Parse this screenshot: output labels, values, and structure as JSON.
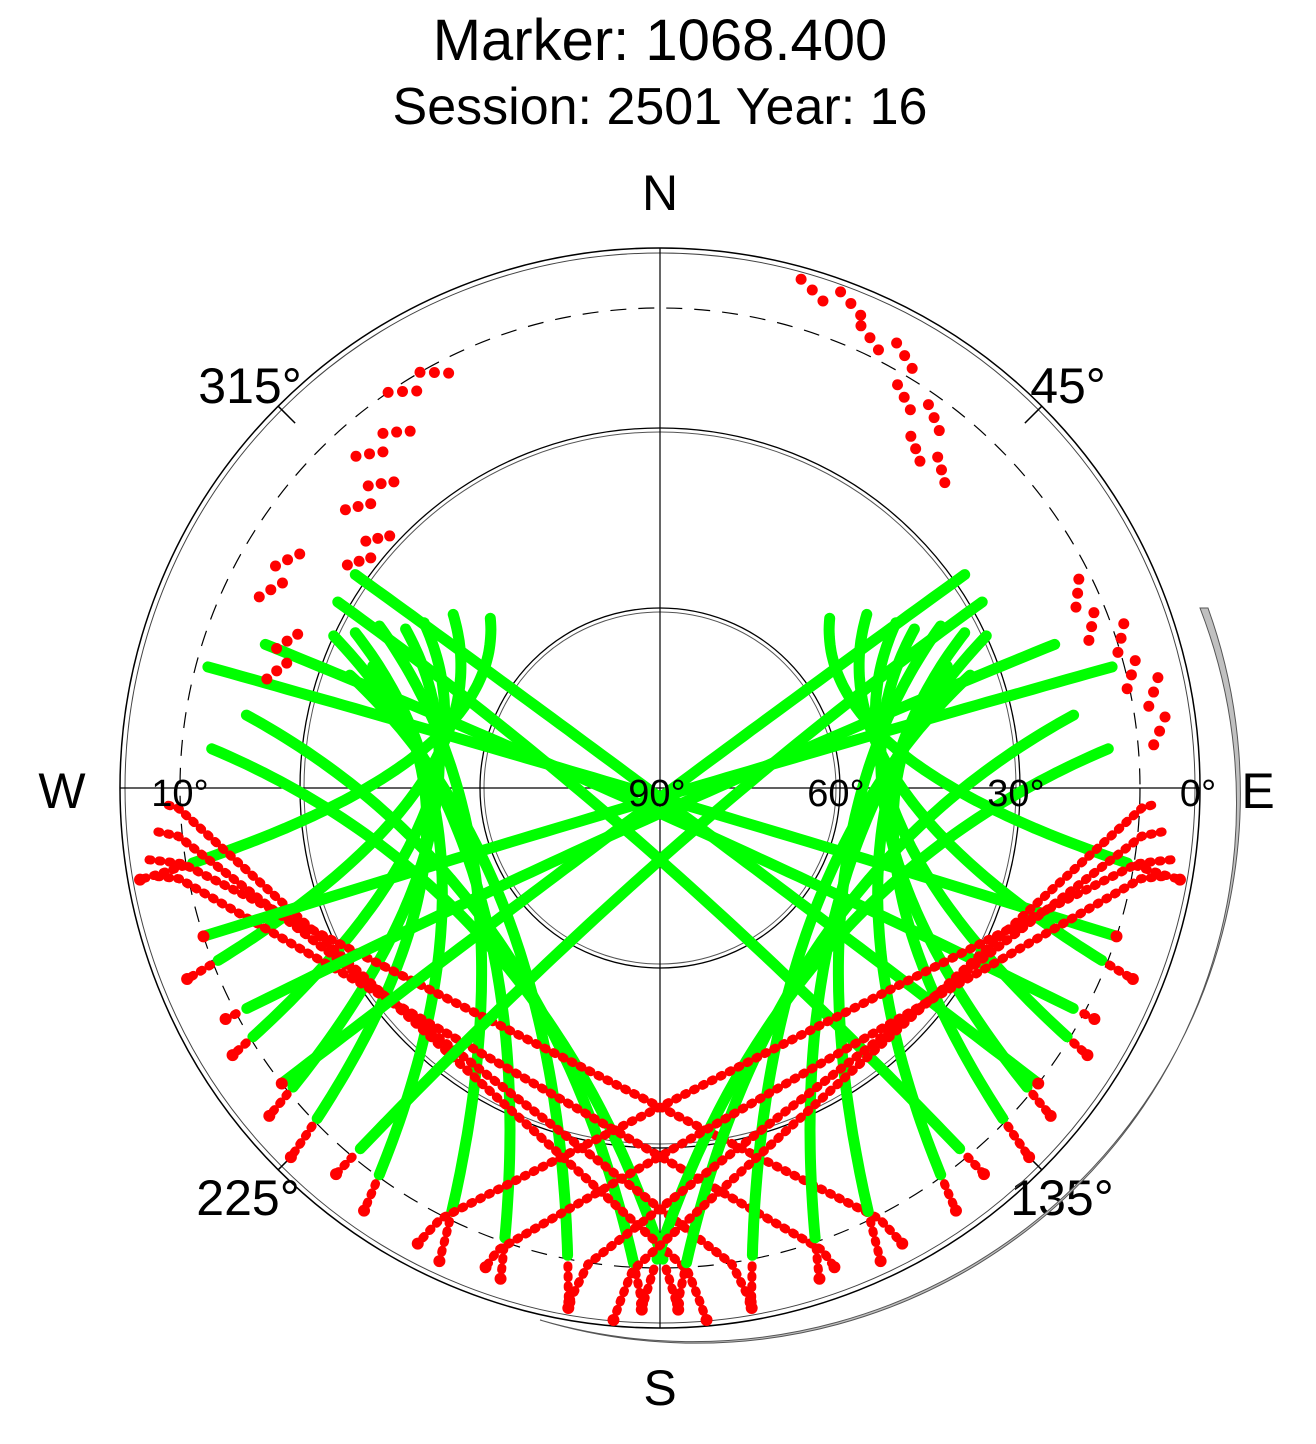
{
  "chart_data": {
    "type": "scatter",
    "projection": "polar-skyplot",
    "title": "Marker: 1068.400",
    "subtitle": "Session: 2501 Year: 16",
    "compass": {
      "north": "N",
      "south": "S",
      "east": "E",
      "west": "W"
    },
    "azimuth_labels": [
      "45°",
      "135°",
      "225°",
      "315°"
    ],
    "elevation_labels": [
      "0°",
      "10°",
      "30°",
      "60°",
      "90°"
    ],
    "elevation_mask_deg": 10,
    "elevation_rings_deg": [
      30,
      60
    ],
    "series": [],
    "colors": {
      "above_mask": "#00ff00",
      "below_mask": "#ff0000",
      "horizon_shade": "#c0c0c0",
      "axes": "#000000"
    },
    "tracks": [
      {
        "start": [
          293,
          38
        ],
        "end": [
          225,
          3
        ]
      },
      {
        "start": [
          302,
          40
        ],
        "end": [
          230,
          5
        ]
      },
      {
        "start": [
          305,
          42
        ],
        "end": [
          238,
          6
        ]
      },
      {
        "start": [
          297,
          33
        ],
        "end": [
          215,
          4
        ]
      },
      {
        "start": [
          310,
          45
        ],
        "end": [
          248,
          5
        ]
      },
      {
        "start": [
          300,
          36
        ],
        "end": [
          205,
          3
        ]
      },
      {
        "start": [
          295,
          30
        ],
        "end": [
          198,
          4
        ]
      },
      {
        "start": [
          290,
          35
        ],
        "end": [
          190,
          2
        ]
      },
      {
        "start": [
          315,
          50
        ],
        "end": [
          260,
          2
        ]
      },
      {
        "start": [
          280,
          20
        ],
        "end": [
          182,
          4
        ]
      },
      {
        "start": [
          275,
          15
        ],
        "end": [
          178,
          3
        ]
      },
      {
        "start": [
          268,
          8
        ],
        "end": [
          175,
          1
        ]
      },
      {
        "start": [
          265,
          6
        ],
        "end": [
          170,
          3
        ]
      },
      {
        "start": [
          260,
          5
        ],
        "end": [
          160,
          5
        ]
      },
      {
        "start": [
          262,
          4
        ],
        "end": [
          152,
          4
        ]
      },
      {
        "start": [
          300,
          28
        ],
        "end": [
          140,
          6
        ]
      },
      {
        "start": [
          305,
          28
        ],
        "end": [
          128,
          10
        ]
      },
      {
        "start": [
          290,
          20
        ],
        "end": [
          118,
          8
        ]
      },
      {
        "start": [
          285,
          12
        ],
        "end": [
          108,
          10
        ]
      },
      {
        "start": [
          67,
          38
        ],
        "end": [
          135,
          3
        ]
      },
      {
        "start": [
          58,
          40
        ],
        "end": [
          130,
          5
        ]
      },
      {
        "start": [
          55,
          42
        ],
        "end": [
          122,
          6
        ]
      },
      {
        "start": [
          63,
          33
        ],
        "end": [
          145,
          4
        ]
      },
      {
        "start": [
          50,
          45
        ],
        "end": [
          112,
          5
        ]
      },
      {
        "start": [
          60,
          36
        ],
        "end": [
          155,
          3
        ]
      },
      {
        "start": [
          65,
          30
        ],
        "end": [
          162,
          4
        ]
      },
      {
        "start": [
          70,
          35
        ],
        "end": [
          170,
          2
        ]
      },
      {
        "start": [
          45,
          50
        ],
        "end": [
          100,
          2
        ]
      },
      {
        "start": [
          80,
          20
        ],
        "end": [
          178,
          4
        ]
      },
      {
        "start": [
          85,
          15
        ],
        "end": [
          182,
          3
        ]
      },
      {
        "start": [
          92,
          8
        ],
        "end": [
          185,
          1
        ]
      },
      {
        "start": [
          95,
          6
        ],
        "end": [
          190,
          3
        ]
      },
      {
        "start": [
          100,
          5
        ],
        "end": [
          200,
          5
        ]
      },
      {
        "start": [
          98,
          4
        ],
        "end": [
          208,
          4
        ]
      },
      {
        "start": [
          60,
          28
        ],
        "end": [
          220,
          6
        ]
      },
      {
        "start": [
          55,
          28
        ],
        "end": [
          232,
          10
        ]
      },
      {
        "start": [
          70,
          20
        ],
        "end": [
          242,
          8
        ]
      },
      {
        "start": [
          75,
          12
        ],
        "end": [
          252,
          10
        ]
      }
    ]
  }
}
